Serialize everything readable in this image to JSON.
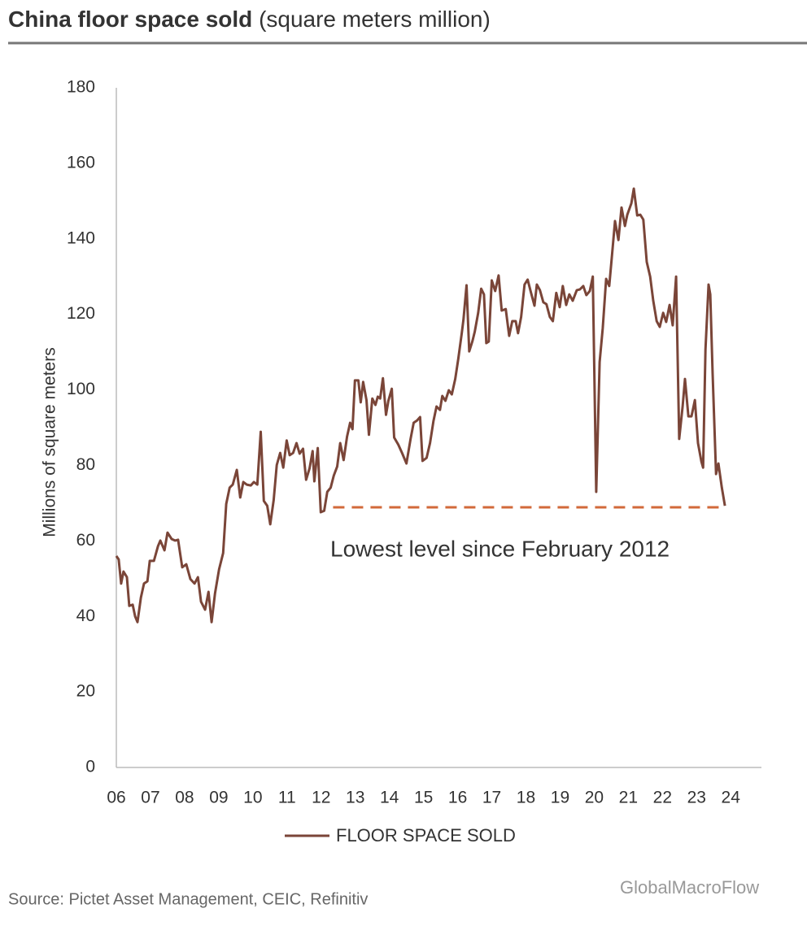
{
  "chart_data": {
    "type": "line",
    "title": "China floor space sold",
    "subtitle": "(square meters million)",
    "ylabel": "Millions  of square meters",
    "source": "Source: Pictet Asset Management, CEIC, Refinitiv",
    "watermark": "GlobalMacroFlow",
    "annotation": "Lowest level since February 2012",
    "reference_line": {
      "value": 68.9,
      "x_range": [
        2012.35,
        2023.81
      ],
      "color": "#d2693a"
    },
    "xlim": [
      2006,
      2024.9
    ],
    "ylim": [
      0,
      180
    ],
    "yticks": [
      0,
      20,
      40,
      60,
      80,
      100,
      120,
      140,
      160,
      180
    ],
    "xticks": [
      {
        "value": 2006,
        "label": "06"
      },
      {
        "value": 2007,
        "label": "07"
      },
      {
        "value": 2008,
        "label": "08"
      },
      {
        "value": 2009,
        "label": "09"
      },
      {
        "value": 2010,
        "label": "10"
      },
      {
        "value": 2011,
        "label": "11"
      },
      {
        "value": 2012,
        "label": "12"
      },
      {
        "value": 2013,
        "label": "13"
      },
      {
        "value": 2014,
        "label": "14"
      },
      {
        "value": 2015,
        "label": "15"
      },
      {
        "value": 2016,
        "label": "16"
      },
      {
        "value": 2017,
        "label": "17"
      },
      {
        "value": 2018,
        "label": "18"
      },
      {
        "value": 2019,
        "label": "19"
      },
      {
        "value": 2020,
        "label": "20"
      },
      {
        "value": 2021,
        "label": "21"
      },
      {
        "value": 2022,
        "label": "22"
      },
      {
        "value": 2023,
        "label": "23"
      },
      {
        "value": 2024,
        "label": "24"
      }
    ],
    "grid": false,
    "legend": "bottom",
    "x": [
      2006.0,
      2006.07,
      2006.14,
      2006.21,
      2006.31,
      2006.38,
      2006.48,
      2006.55,
      2006.62,
      2006.72,
      2006.81,
      2006.91,
      2006.98,
      2007.1,
      2007.22,
      2007.29,
      2007.41,
      2007.5,
      2007.62,
      2007.72,
      2007.81,
      2007.93,
      2008.05,
      2008.17,
      2008.29,
      2008.39,
      2008.48,
      2008.6,
      2008.7,
      2008.79,
      2008.89,
      2009.01,
      2009.13,
      2009.22,
      2009.32,
      2009.41,
      2009.53,
      2009.63,
      2009.72,
      2009.82,
      2009.94,
      2010.03,
      2010.13,
      2010.23,
      2010.32,
      2010.42,
      2010.51,
      2010.61,
      2010.7,
      2010.8,
      2010.89,
      2010.99,
      2011.08,
      2011.18,
      2011.28,
      2011.37,
      2011.47,
      2011.56,
      2011.66,
      2011.75,
      2011.8,
      2011.9,
      2011.99,
      2012.09,
      2012.18,
      2012.28,
      2012.37,
      2012.47,
      2012.56,
      2012.66,
      2012.76,
      2012.85,
      2012.92,
      2012.99,
      2013.09,
      2013.16,
      2013.23,
      2013.33,
      2013.4,
      2013.5,
      2013.59,
      2013.66,
      2013.73,
      2013.81,
      2013.9,
      2013.97,
      2014.07,
      2014.14,
      2014.26,
      2014.38,
      2014.5,
      2014.62,
      2014.71,
      2014.81,
      2014.9,
      2014.97,
      2015.09,
      2015.19,
      2015.29,
      2015.38,
      2015.48,
      2015.55,
      2015.64,
      2015.74,
      2015.83,
      2015.93,
      2016.02,
      2016.12,
      2016.17,
      2016.26,
      2016.34,
      2016.43,
      2016.5,
      2016.6,
      2016.69,
      2016.77,
      2016.84,
      2016.91,
      2017.0,
      2017.1,
      2017.2,
      2017.29,
      2017.41,
      2017.51,
      2017.6,
      2017.7,
      2017.77,
      2017.86,
      2017.96,
      2018.05,
      2018.15,
      2018.25,
      2018.32,
      2018.41,
      2018.51,
      2018.6,
      2018.7,
      2018.79,
      2018.89,
      2018.99,
      2019.08,
      2019.18,
      2019.27,
      2019.37,
      2019.49,
      2019.58,
      2019.68,
      2019.77,
      2019.87,
      2019.96,
      2020.06,
      2020.16,
      2020.25,
      2020.35,
      2020.44,
      2020.54,
      2020.61,
      2020.71,
      2020.8,
      2020.9,
      2020.97,
      2021.09,
      2021.16,
      2021.26,
      2021.35,
      2021.44,
      2021.54,
      2021.64,
      2021.73,
      2021.83,
      2021.92,
      2022.02,
      2022.11,
      2022.21,
      2022.3,
      2022.4,
      2022.49,
      2022.59,
      2022.66,
      2022.76,
      2022.85,
      2022.95,
      2023.04,
      2023.14,
      2023.19,
      2023.26,
      2023.35,
      2023.4,
      2023.47,
      2023.57,
      2023.64,
      2023.74,
      2023.83
    ],
    "series": [
      {
        "name": "FLOOR SPACE SOLD",
        "color": "#7a4538",
        "values": [
          56.0,
          55.1,
          48.7,
          51.9,
          50.4,
          42.8,
          43.1,
          40.0,
          38.5,
          45.0,
          48.7,
          49.3,
          54.7,
          54.7,
          58.6,
          60.1,
          57.5,
          62.2,
          60.5,
          60.1,
          60.3,
          53.0,
          53.8,
          49.9,
          48.7,
          50.4,
          43.9,
          41.8,
          46.5,
          38.5,
          46.1,
          52.5,
          56.8,
          69.8,
          74.1,
          74.9,
          78.8,
          71.5,
          75.6,
          74.9,
          74.7,
          75.6,
          74.9,
          88.9,
          70.6,
          69.3,
          64.4,
          70.8,
          80.1,
          83.3,
          79.4,
          86.6,
          82.7,
          83.3,
          85.9,
          83.1,
          84.4,
          76.2,
          79.2,
          83.8,
          75.8,
          84.6,
          67.6,
          68.0,
          73.0,
          74.1,
          77.3,
          79.7,
          85.9,
          81.4,
          87.6,
          91.3,
          89.6,
          102.5,
          102.5,
          96.7,
          102.1,
          97.3,
          88.1,
          97.7,
          96.0,
          98.2,
          97.7,
          103.1,
          93.4,
          97.1,
          100.3,
          87.4,
          85.5,
          83.1,
          80.5,
          87.0,
          91.3,
          91.9,
          92.8,
          81.2,
          82.0,
          85.9,
          91.7,
          95.6,
          94.7,
          98.4,
          97.1,
          99.9,
          98.8,
          102.9,
          108.3,
          115.0,
          118.6,
          127.7,
          110.2,
          112.8,
          115.4,
          120.4,
          126.8,
          125.3,
          112.4,
          112.8,
          129.0,
          126.2,
          130.3,
          121.0,
          121.4,
          114.3,
          118.2,
          118.2,
          115.0,
          119.3,
          127.9,
          129.2,
          125.7,
          122.3,
          127.9,
          126.4,
          123.2,
          122.7,
          119.3,
          118.2,
          125.7,
          121.9,
          127.5,
          122.5,
          125.3,
          123.6,
          126.4,
          126.6,
          127.5,
          125.1,
          126.2,
          130.0,
          73.0,
          107.4,
          116.3,
          129.4,
          127.5,
          137.6,
          144.7,
          139.7,
          148.3,
          143.4,
          146.4,
          149.4,
          153.3,
          146.2,
          146.4,
          145.1,
          133.9,
          130.0,
          123.6,
          118.2,
          116.7,
          120.4,
          118.0,
          122.5,
          117.1,
          130.0,
          87.0,
          95.6,
          102.9,
          93.0,
          93.0,
          97.3,
          85.9,
          81.0,
          79.4,
          110.7,
          127.9,
          125.3,
          104.2,
          77.7,
          80.5,
          74.1,
          69.3
        ]
      }
    ]
  }
}
